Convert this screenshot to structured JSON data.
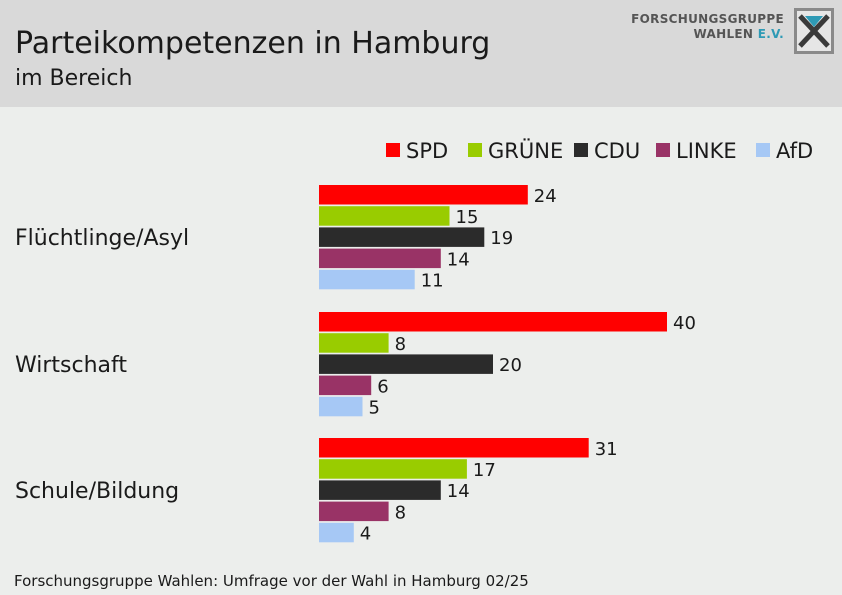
{
  "header": {
    "title": "Parteikompetenzen in Hamburg",
    "subtitle": "im Bereich"
  },
  "logo": {
    "line1": "FORSCHUNGSGRUPPE",
    "line2_main": "WAHLEN",
    "line2_suffix": "E.V."
  },
  "source": "Forschungsgruppe Wahlen: Umfrage vor der Wahl in Hamburg 02/25",
  "chart_data": {
    "type": "bar",
    "orientation": "horizontal",
    "title": "Parteikompetenzen in Hamburg",
    "subtitle": "im Bereich",
    "categories": [
      "Flüchtlinge/Asyl",
      "Wirtschaft",
      "Schule/Bildung"
    ],
    "series": [
      {
        "name": "SPD",
        "color": "#ff0000",
        "values": [
          24,
          40,
          31
        ]
      },
      {
        "name": "GRÜNE",
        "color": "#99cc00",
        "values": [
          15,
          8,
          17
        ]
      },
      {
        "name": "CDU",
        "color": "#2b2b2b",
        "values": [
          19,
          20,
          14
        ]
      },
      {
        "name": "LINKE",
        "color": "#993366",
        "values": [
          14,
          6,
          8
        ]
      },
      {
        "name": "AfD",
        "color": "#a6c8f5",
        "values": [
          11,
          5,
          4
        ]
      }
    ],
    "legend_position": "top-right",
    "grid": false,
    "xlim": [
      0,
      40
    ]
  }
}
